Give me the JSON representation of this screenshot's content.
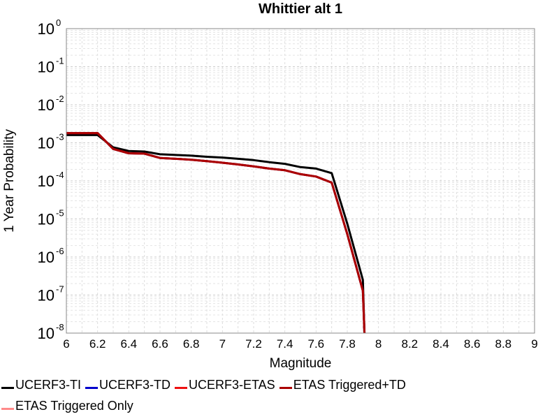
{
  "chart_data": {
    "type": "line",
    "title": "Whittier alt 1",
    "xlabel": "Magnitude",
    "ylabel": "1 Year Probability",
    "xlim": [
      6,
      9
    ],
    "ylim": [
      1e-08,
      1
    ],
    "yscale": "log",
    "grid": true,
    "legend_position": "bottom",
    "x_ticks": [
      "6",
      "6.2",
      "6.4",
      "6.6",
      "6.8",
      "7",
      "7.2",
      "7.4",
      "7.6",
      "7.8",
      "8",
      "8.2",
      "8.4",
      "8.6",
      "8.8",
      "9"
    ],
    "y_ticks": [
      {
        "base": "10",
        "exp": "0"
      },
      {
        "base": "10",
        "exp": "-1"
      },
      {
        "base": "10",
        "exp": "-2"
      },
      {
        "base": "10",
        "exp": "-3"
      },
      {
        "base": "10",
        "exp": "-4"
      },
      {
        "base": "10",
        "exp": "-5"
      },
      {
        "base": "10",
        "exp": "-6"
      },
      {
        "base": "10",
        "exp": "-7"
      },
      {
        "base": "10",
        "exp": "-8"
      }
    ],
    "series": [
      {
        "name": "UCERF3-TI",
        "color": "#000000",
        "x": [
          6.0,
          6.2,
          6.3,
          6.4,
          6.5,
          6.6,
          6.7,
          6.8,
          6.9,
          7.0,
          7.1,
          7.2,
          7.3,
          7.4,
          7.5,
          7.6,
          7.7,
          7.8,
          7.9,
          7.91
        ],
        "y": [
          0.0016,
          0.0016,
          0.00076,
          0.00061,
          0.00059,
          0.0005,
          0.00048,
          0.00046,
          0.00043,
          0.00041,
          0.00038,
          0.00035,
          0.00031,
          0.00028,
          0.00023,
          0.00021,
          0.00016,
          7.5e-06,
          2.5e-07,
          1e-08
        ]
      },
      {
        "name": "UCERF3-TD",
        "color": "#0000cc",
        "x": [
          6.0,
          6.2,
          6.3,
          6.4,
          6.5,
          6.6,
          6.7,
          6.8,
          6.9,
          7.0,
          7.1,
          7.2,
          7.3,
          7.4,
          7.5,
          7.6,
          7.7,
          7.8,
          7.9,
          7.91
        ],
        "y": [
          0.0018,
          0.0018,
          0.00069,
          0.00053,
          0.00052,
          0.0004,
          0.00038,
          0.00036,
          0.00033,
          0.0003,
          0.00027,
          0.00024,
          0.00021,
          0.00019,
          0.00015,
          0.00013,
          9e-05,
          4e-06,
          1.3e-07,
          1e-08
        ]
      },
      {
        "name": "UCERF3-ETAS",
        "color": "#ee1111",
        "x": [
          6.0,
          6.2,
          6.3,
          6.4,
          6.5,
          6.6,
          6.7,
          6.8,
          6.9,
          7.0,
          7.1,
          7.2,
          7.3,
          7.4,
          7.5,
          7.6,
          7.7,
          7.8,
          7.9,
          7.91
        ],
        "y": [
          0.0018,
          0.0018,
          0.00069,
          0.00053,
          0.00052,
          0.0004,
          0.00038,
          0.00036,
          0.00033,
          0.0003,
          0.00027,
          0.00024,
          0.00021,
          0.00019,
          0.00015,
          0.00013,
          9e-05,
          4e-06,
          1.3e-07,
          1e-08
        ]
      },
      {
        "name": "ETAS Triggered+TD",
        "color": "#aa0000",
        "x": [
          6.0,
          6.2,
          6.3,
          6.4,
          6.5,
          6.6,
          6.7,
          6.8,
          6.9,
          7.0,
          7.1,
          7.2,
          7.3,
          7.4,
          7.5,
          7.6,
          7.7,
          7.8,
          7.9,
          7.91
        ],
        "y": [
          0.0018,
          0.0018,
          0.00069,
          0.00053,
          0.00052,
          0.0004,
          0.00038,
          0.00036,
          0.00033,
          0.0003,
          0.00027,
          0.00024,
          0.00021,
          0.00019,
          0.00015,
          0.00013,
          9e-05,
          4e-06,
          1.3e-07,
          1e-08
        ]
      },
      {
        "name": "ETAS Triggered Only",
        "color": "#ff8a8a",
        "x": [],
        "y": []
      }
    ]
  }
}
